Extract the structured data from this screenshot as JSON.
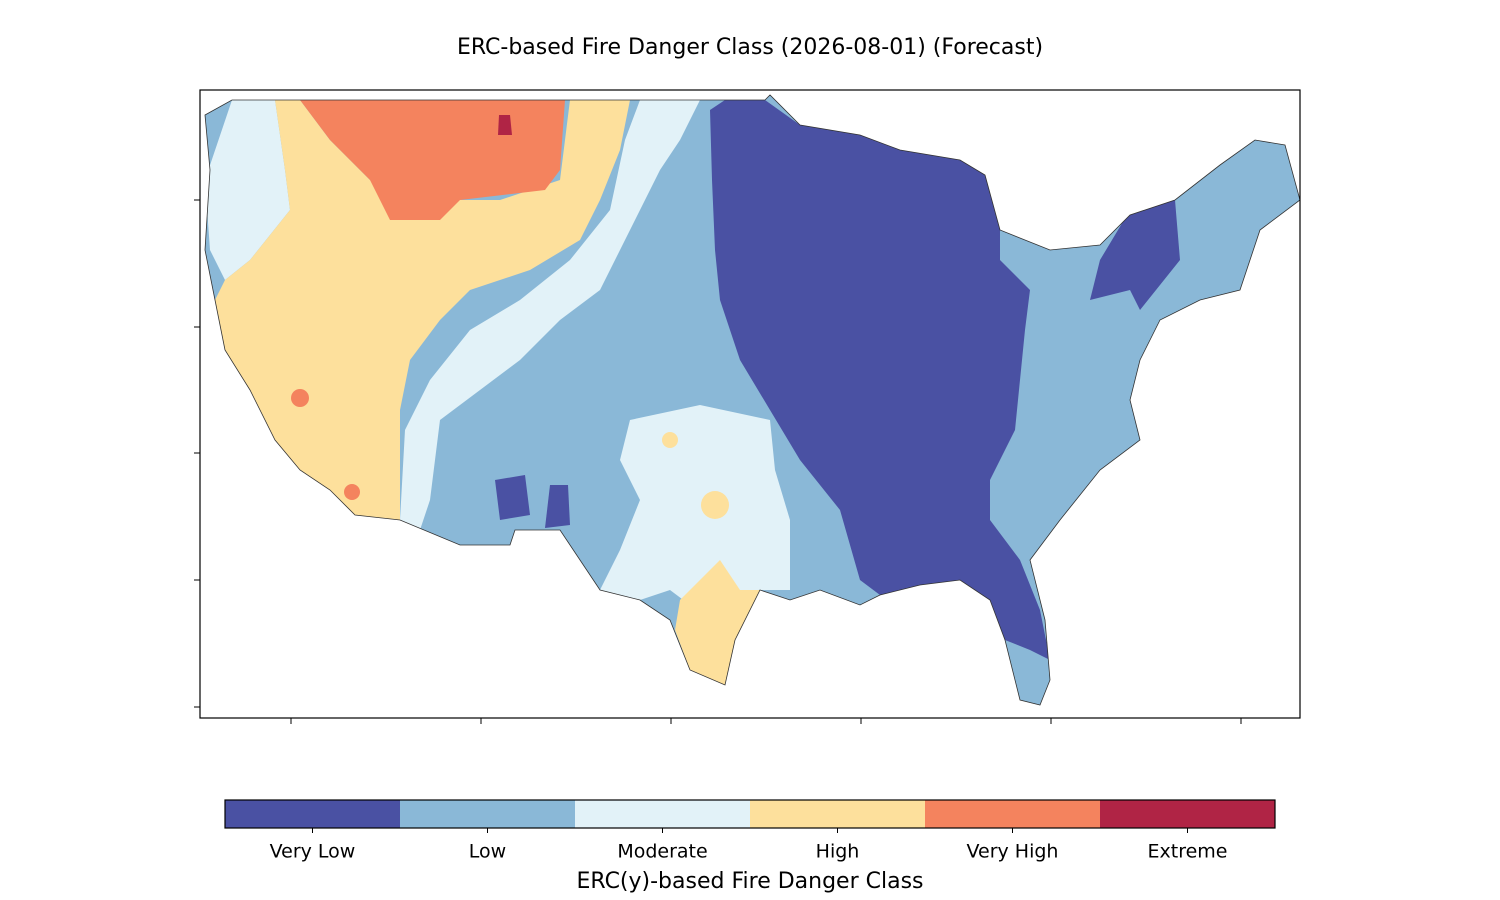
{
  "title": "ERC-based Fire Danger Class (2026-08-01) (Forecast)",
  "colorbar": {
    "label": "ERC(y)-based Fire Danger Class",
    "classes": [
      {
        "name": "Very Low",
        "color": "#4a51a3"
      },
      {
        "name": "Low",
        "color": "#8ab8d7"
      },
      {
        "name": "Moderate",
        "color": "#e2f2f8"
      },
      {
        "name": "High",
        "color": "#fde09c"
      },
      {
        "name": "Very High",
        "color": "#f4835e"
      },
      {
        "name": "Extreme",
        "color": "#b02445"
      }
    ]
  }
}
